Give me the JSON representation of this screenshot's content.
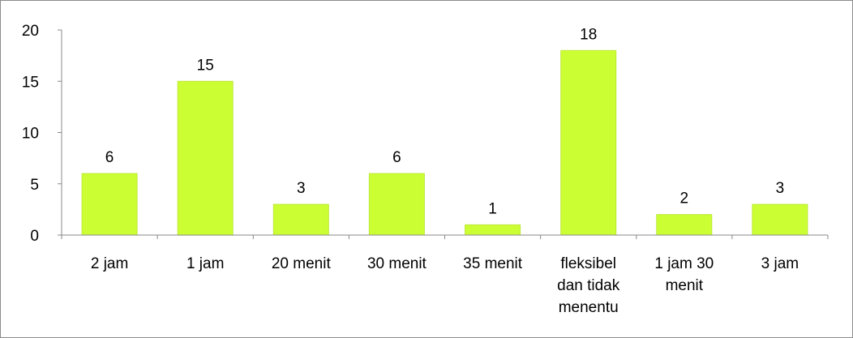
{
  "chart_data": {
    "type": "bar",
    "categories": [
      [
        "2 jam"
      ],
      [
        "1 jam"
      ],
      [
        "20 menit"
      ],
      [
        "30 menit"
      ],
      [
        "35 menit"
      ],
      [
        "fleksibel",
        "dan tidak",
        "menentu"
      ],
      [
        "1 jam 30",
        "menit"
      ],
      [
        "3 jam"
      ]
    ],
    "values": [
      6,
      15,
      3,
      6,
      1,
      18,
      2,
      3
    ],
    "ylim": [
      0,
      20
    ],
    "yticks": [
      0,
      5,
      10,
      15,
      20
    ],
    "grid": false,
    "legend": "none",
    "data_labels": true,
    "bar_color": "#ccff33",
    "bar_edge_color": "#bde836",
    "axis_color": "#888888"
  }
}
